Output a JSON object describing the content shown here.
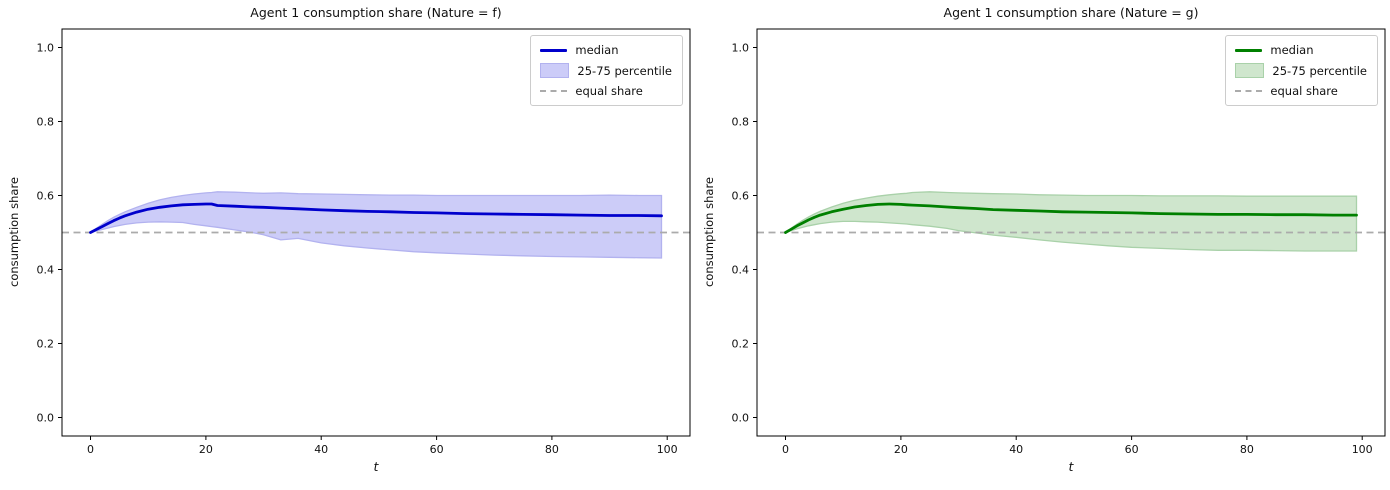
{
  "figure": {
    "background": "#ffffff"
  },
  "chart_data": [
    {
      "type": "line",
      "title": "Agent 1 consumption share (Nature = f)",
      "xlabel": "t",
      "ylabel": "consumption share",
      "xlim": [
        -4.95,
        103.95
      ],
      "ylim": [
        -0.05,
        1.05
      ],
      "xticks": [
        0,
        20,
        40,
        60,
        80,
        100
      ],
      "xtick_labels": [
        "0",
        "20",
        "40",
        "60",
        "80",
        "100"
      ],
      "yticks": [
        0.0,
        0.2,
        0.4,
        0.6,
        0.8,
        1.0
      ],
      "ytick_labels": [
        "0.0",
        "0.2",
        "0.4",
        "0.6",
        "0.8",
        "1.0"
      ],
      "grid": false,
      "legend_position": "upper right",
      "legend": [
        "median",
        "25-75 percentile",
        "equal share"
      ],
      "equal_share_value": 0.5,
      "colors": {
        "line": "#0000cc",
        "band_fill": "#ccccf8",
        "band_edge": "#b2b2ef",
        "dash": "#ababab",
        "frame": "#000000"
      },
      "x": [
        0,
        1,
        2,
        3,
        4,
        5,
        6,
        8,
        10,
        12,
        14,
        16,
        18,
        20,
        21,
        22,
        25,
        28,
        30,
        33,
        36,
        40,
        44,
        48,
        52,
        56,
        60,
        65,
        70,
        75,
        80,
        85,
        90,
        95,
        99
      ],
      "series": [
        {
          "name": "median",
          "values": [
            0.5,
            0.508,
            0.516,
            0.524,
            0.532,
            0.539,
            0.545,
            0.555,
            0.563,
            0.568,
            0.572,
            0.575,
            0.576,
            0.577,
            0.577,
            0.573,
            0.571,
            0.569,
            0.568,
            0.566,
            0.564,
            0.561,
            0.559,
            0.557,
            0.556,
            0.554,
            0.553,
            0.551,
            0.55,
            0.549,
            0.548,
            0.547,
            0.546,
            0.546,
            0.545
          ]
        },
        {
          "name": "p75",
          "values": [
            0.5,
            0.511,
            0.522,
            0.532,
            0.541,
            0.549,
            0.556,
            0.568,
            0.579,
            0.588,
            0.595,
            0.6,
            0.604,
            0.607,
            0.608,
            0.61,
            0.609,
            0.607,
            0.606,
            0.607,
            0.605,
            0.604,
            0.603,
            0.602,
            0.601,
            0.601,
            0.6,
            0.6,
            0.6,
            0.6,
            0.6,
            0.6,
            0.601,
            0.6,
            0.6
          ]
        },
        {
          "name": "p25",
          "values": [
            0.5,
            0.504,
            0.508,
            0.512,
            0.516,
            0.519,
            0.522,
            0.526,
            0.528,
            0.529,
            0.528,
            0.527,
            0.522,
            0.518,
            0.516,
            0.514,
            0.507,
            0.5,
            0.494,
            0.48,
            0.484,
            0.472,
            0.464,
            0.458,
            0.453,
            0.448,
            0.445,
            0.442,
            0.439,
            0.437,
            0.435,
            0.434,
            0.433,
            0.432,
            0.431
          ]
        }
      ]
    },
    {
      "type": "line",
      "title": "Agent 1 consumption share (Nature = g)",
      "xlabel": "t",
      "ylabel": "consumption share",
      "xlim": [
        -4.95,
        103.95
      ],
      "ylim": [
        -0.05,
        1.05
      ],
      "xticks": [
        0,
        20,
        40,
        60,
        80,
        100
      ],
      "xtick_labels": [
        "0",
        "20",
        "40",
        "60",
        "80",
        "100"
      ],
      "yticks": [
        0.0,
        0.2,
        0.4,
        0.6,
        0.8,
        1.0
      ],
      "ytick_labels": [
        "0.0",
        "0.2",
        "0.4",
        "0.6",
        "0.8",
        "1.0"
      ],
      "grid": false,
      "legend_position": "upper right",
      "legend": [
        "median",
        "25-75 percentile",
        "equal share"
      ],
      "equal_share_value": 0.5,
      "colors": {
        "line": "#008000",
        "band_fill": "#cfe6cd",
        "band_edge": "#a9d1a9",
        "dash": "#ababab",
        "frame": "#000000"
      },
      "x": [
        0,
        1,
        2,
        3,
        4,
        5,
        6,
        8,
        10,
        12,
        14,
        16,
        18,
        20,
        21,
        22,
        25,
        28,
        30,
        33,
        36,
        40,
        44,
        48,
        52,
        56,
        60,
        65,
        70,
        75,
        80,
        85,
        90,
        95,
        99
      ],
      "series": [
        {
          "name": "median",
          "values": [
            0.5,
            0.509,
            0.518,
            0.526,
            0.534,
            0.541,
            0.547,
            0.556,
            0.563,
            0.569,
            0.573,
            0.576,
            0.577,
            0.576,
            0.575,
            0.574,
            0.572,
            0.569,
            0.567,
            0.565,
            0.562,
            0.56,
            0.558,
            0.556,
            0.555,
            0.554,
            0.553,
            0.551,
            0.55,
            0.549,
            0.549,
            0.548,
            0.548,
            0.547,
            0.547
          ]
        },
        {
          "name": "p75",
          "values": [
            0.5,
            0.512,
            0.523,
            0.533,
            0.542,
            0.55,
            0.557,
            0.569,
            0.579,
            0.587,
            0.593,
            0.598,
            0.602,
            0.605,
            0.606,
            0.608,
            0.61,
            0.608,
            0.607,
            0.606,
            0.605,
            0.604,
            0.602,
            0.601,
            0.6,
            0.6,
            0.6,
            0.599,
            0.599,
            0.599,
            0.598,
            0.598,
            0.598,
            0.598,
            0.598
          ]
        },
        {
          "name": "p25",
          "values": [
            0.5,
            0.505,
            0.51,
            0.514,
            0.518,
            0.521,
            0.524,
            0.528,
            0.53,
            0.53,
            0.529,
            0.528,
            0.526,
            0.524,
            0.523,
            0.521,
            0.517,
            0.511,
            0.505,
            0.499,
            0.493,
            0.487,
            0.48,
            0.474,
            0.469,
            0.464,
            0.46,
            0.457,
            0.454,
            0.452,
            0.452,
            0.451,
            0.45,
            0.45,
            0.45
          ]
        }
      ]
    }
  ]
}
